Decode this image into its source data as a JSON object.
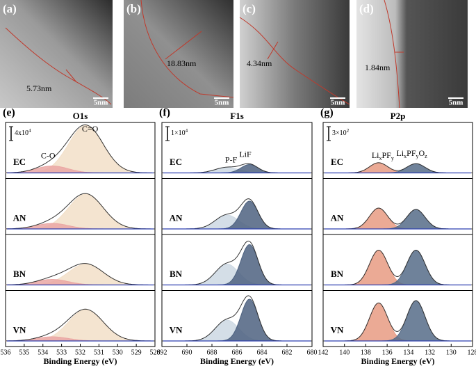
{
  "tem_panels": [
    {
      "label": "(a)",
      "thickness": "5.73nm",
      "scale": "5nm"
    },
    {
      "label": "(b)",
      "thickness": "18.83nm",
      "scale": "5nm"
    },
    {
      "label": "(c)",
      "thickness": "4.34nm",
      "scale": "5nm"
    },
    {
      "label": "(d)",
      "thickness": "1.84nm",
      "scale": "5nm"
    }
  ],
  "chart_data": [
    {
      "type": "xps",
      "panel_label": "(e)",
      "title": "O1s",
      "xlabel": "Binding Energy (eV)",
      "xlim": [
        536,
        528
      ],
      "xticks": [
        536,
        535,
        534,
        533,
        532,
        531,
        530,
        529,
        528
      ],
      "scale": {
        "value": 40000,
        "label": "4x10",
        "exp": "4"
      },
      "peaks": [
        {
          "name": [
            "C=O"
          ],
          "center": 531.7,
          "fwhm": 2.2,
          "color": "#f2dfc8"
        },
        {
          "name": [
            "C-O"
          ],
          "center": 533.5,
          "fwhm": 2.0,
          "color": "#eaa7a4"
        }
      ],
      "rows": [
        {
          "name": "EC",
          "heights": [
            136000,
            20000
          ]
        },
        {
          "name": "AN",
          "heights": [
            100000,
            16000
          ]
        },
        {
          "name": "BN",
          "heights": [
            60000,
            16000
          ]
        },
        {
          "name": "VN",
          "heights": [
            90000,
            12000
          ]
        }
      ]
    },
    {
      "type": "xps",
      "panel_label": "(f)",
      "title": "F1s",
      "xlabel": "Binding Energy (eV)",
      "xlim": [
        692,
        680
      ],
      "xticks": [
        692,
        690,
        688,
        686,
        684,
        682,
        680
      ],
      "scale": {
        "value": 10000,
        "label": "1×10",
        "exp": "4"
      },
      "peaks": [
        {
          "name": [
            "P-F"
          ],
          "center": 686.8,
          "fwhm": 2.2,
          "color": "#cdd8e3"
        },
        {
          "name": [
            "LiF"
          ],
          "center": 685.0,
          "fwhm": 1.6,
          "color": "#4d6280"
        }
      ],
      "rows": [
        {
          "name": "EC",
          "heights": [
            4000,
            6000
          ]
        },
        {
          "name": "AN",
          "heights": [
            10000,
            20000
          ]
        },
        {
          "name": "BN",
          "heights": [
            15000,
            29000
          ]
        },
        {
          "name": "VN",
          "heights": [
            15000,
            30000
          ]
        }
      ]
    },
    {
      "type": "xps",
      "panel_label": "(g)",
      "title": "P2p",
      "xlabel": "Binding Energy (eV)",
      "xlim": [
        142,
        128
      ],
      "xticks": [
        142,
        140,
        138,
        136,
        134,
        132,
        130,
        128
      ],
      "scale": {
        "value": 300,
        "label": "3×10",
        "exp": "2"
      },
      "peaks": [
        {
          "name": [
            "Li",
            "x",
            "PF",
            "y"
          ],
          "center": 136.8,
          "fwhm": 2.0,
          "color": "#e89b83"
        },
        {
          "name": [
            "Li",
            "x",
            "PF",
            "y",
            "O",
            "z"
          ],
          "center": 133.3,
          "fwhm": 2.0,
          "color": "#566c88"
        }
      ],
      "rows": [
        {
          "name": "EC",
          "heights": [
            220,
            200
          ]
        },
        {
          "name": "AN",
          "heights": [
            450,
            420
          ]
        },
        {
          "name": "BN",
          "heights": [
            750,
            750
          ]
        },
        {
          "name": "VN",
          "heights": [
            820,
            870
          ]
        }
      ]
    }
  ]
}
